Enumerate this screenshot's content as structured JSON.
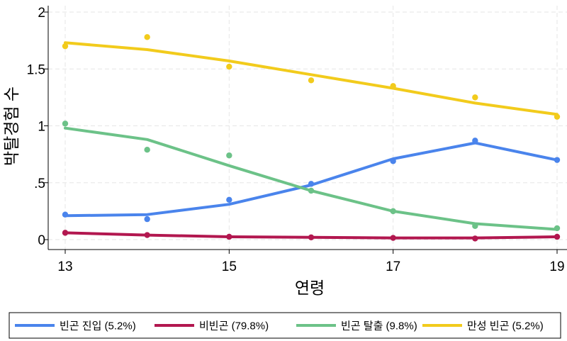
{
  "chart_data": {
    "type": "line",
    "xlabel": "연령",
    "ylabel": "박탈경험 수",
    "xlim": [
      13,
      19
    ],
    "ylim": [
      0,
      2
    ],
    "xticks": [
      "13",
      "15",
      "17",
      "19"
    ],
    "yticks": [
      {
        "value": 0,
        "label": "0"
      },
      {
        "value": 0.5,
        "label": ".5"
      },
      {
        "value": 1,
        "label": "1"
      },
      {
        "value": 1.5,
        "label": "1.5"
      },
      {
        "value": 2,
        "label": "2"
      }
    ],
    "grid": true,
    "legend_position": "bottom",
    "x": [
      13,
      14,
      15,
      16,
      17,
      18,
      19
    ],
    "series": [
      {
        "name": "빈곤 진입 (5.2%)",
        "color": "#4a84ec",
        "fitted": [
          0.21,
          0.22,
          0.31,
          0.48,
          0.71,
          0.85,
          0.7
        ],
        "observed": [
          0.22,
          0.18,
          0.35,
          0.49,
          0.69,
          0.87,
          0.7
        ]
      },
      {
        "name": "비빈곤 (79.8%)",
        "color": "#b2174f",
        "fitted": [
          0.06,
          0.04,
          0.025,
          0.02,
          0.015,
          0.015,
          0.025
        ],
        "observed": [
          0.06,
          0.04,
          0.025,
          0.02,
          0.015,
          0.01,
          0.025
        ]
      },
      {
        "name": "빈곤 탈출 (9.8%)",
        "color": "#6cc288",
        "fitted": [
          0.98,
          0.88,
          0.65,
          0.43,
          0.25,
          0.14,
          0.09
        ],
        "observed": [
          1.02,
          0.79,
          0.74,
          0.43,
          0.25,
          0.12,
          0.1
        ]
      },
      {
        "name": "만성 빈곤 (5.2%)",
        "color": "#f2cb1c",
        "fitted": [
          1.73,
          1.67,
          1.57,
          1.45,
          1.33,
          1.2,
          1.1
        ],
        "observed": [
          1.7,
          1.78,
          1.52,
          1.4,
          1.35,
          1.25,
          1.08
        ]
      }
    ]
  }
}
